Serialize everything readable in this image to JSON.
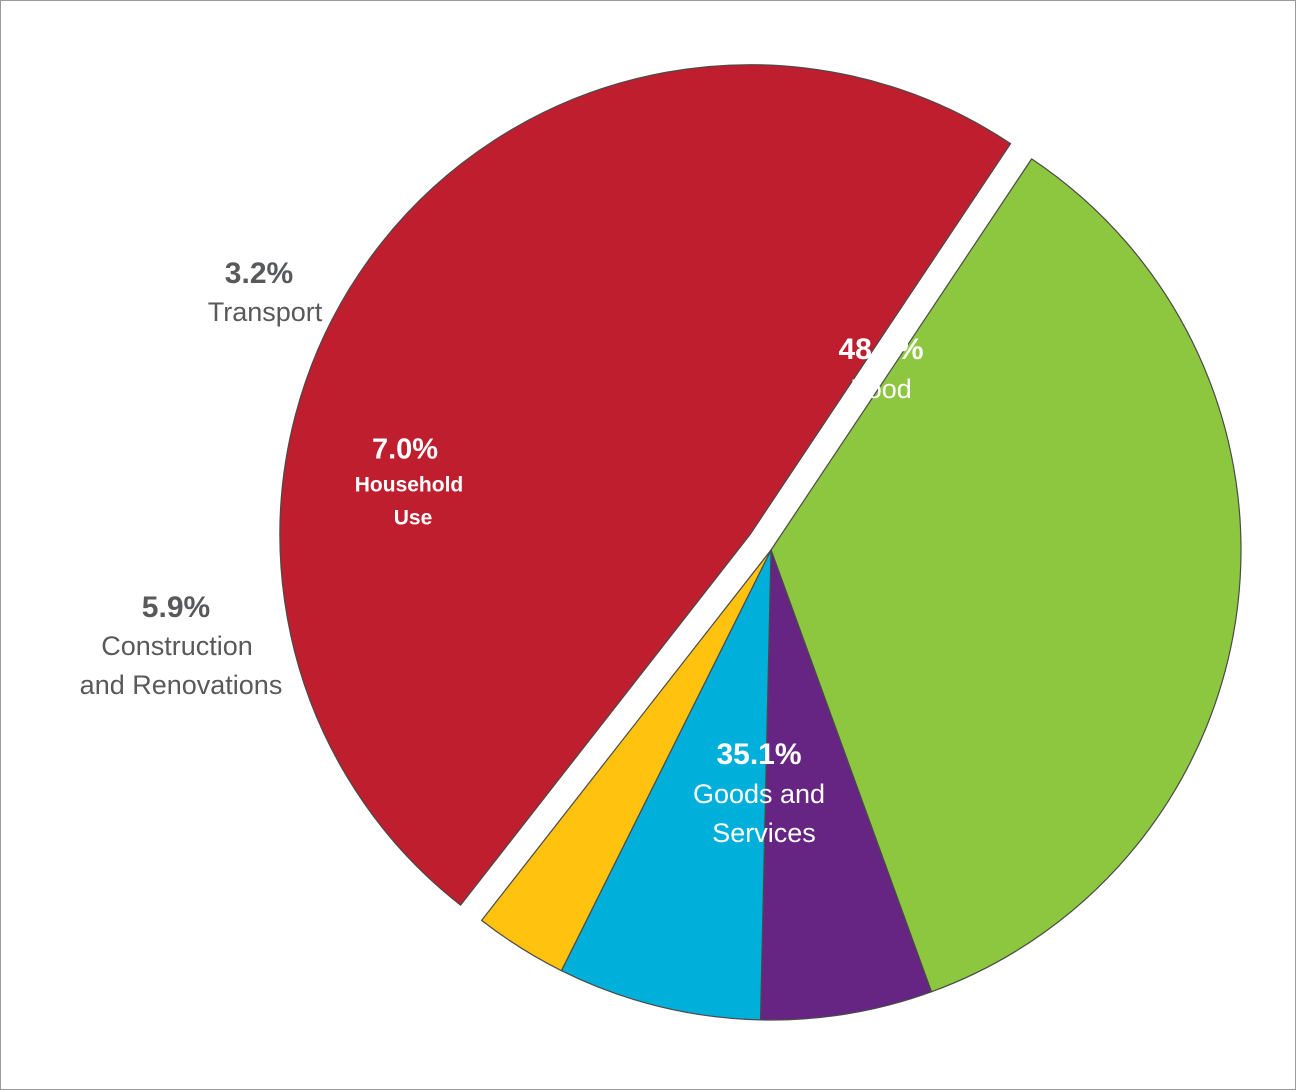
{
  "chart_data": {
    "type": "pie",
    "title": "",
    "slices": [
      {
        "category": "Food",
        "percent_label": "48.8%",
        "name_lines": [
          "Food"
        ],
        "value": 48.8,
        "color": "#be1e2d",
        "exploded": true,
        "label_placement": "inside"
      },
      {
        "category": "Goods and Services",
        "percent_label": "35.1%",
        "name_lines": [
          "Goods and",
          "Services"
        ],
        "value": 35.1,
        "color": "#8dc63f",
        "exploded": false,
        "label_placement": "inside"
      },
      {
        "category": "Construction and Renovations",
        "percent_label": "5.9%",
        "name_lines": [
          "Construction",
          "and Renovations"
        ],
        "value": 5.9,
        "color": "#662483",
        "exploded": false,
        "label_placement": "outside"
      },
      {
        "category": "Household Use",
        "percent_label": "7.0%",
        "name_lines": [
          "Household",
          "Use"
        ],
        "value": 7.0,
        "color": "#00b0db",
        "exploded": false,
        "label_placement": "inside"
      },
      {
        "category": "Transport",
        "percent_label": "3.2%",
        "name_lines": [
          "Transport"
        ],
        "value": 3.2,
        "color": "#ffc20e",
        "exploded": false,
        "label_placement": "outside"
      }
    ],
    "colors": {
      "inside_text": "#ffffff",
      "outside_text": "#58595b",
      "slice_stroke": "#4a4a4a",
      "frame_border": "#9a9a9a"
    }
  }
}
